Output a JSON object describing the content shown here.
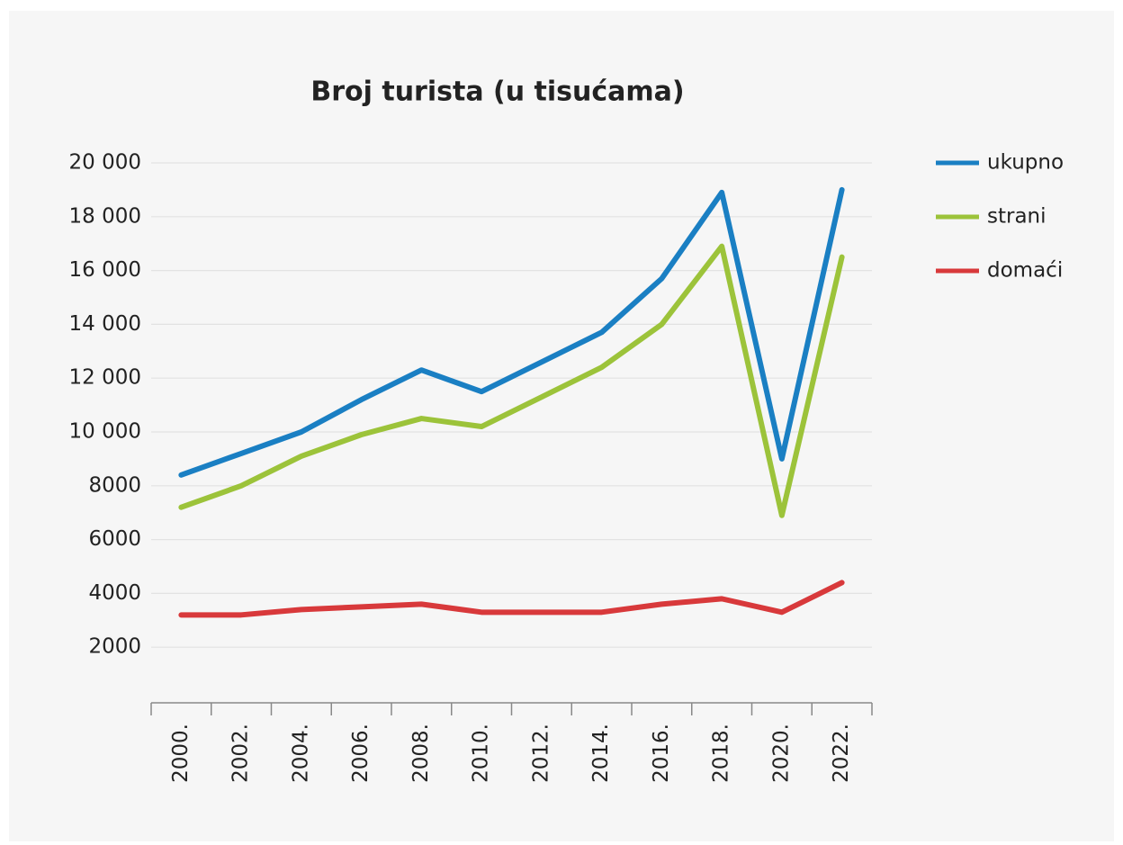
{
  "chart_data": {
    "type": "line",
    "title": "Broj turista (u tisućama)",
    "categories": [
      "2000.",
      "2002.",
      "2004.",
      "2006.",
      "2008.",
      "2010.",
      "2012.",
      "2014.",
      "2016.",
      "2018.",
      "2020.",
      "2022."
    ],
    "series": [
      {
        "name": "ukupno",
        "color": "#1a7fc3",
        "values": [
          8400,
          9200,
          10000,
          11200,
          12300,
          11500,
          12600,
          13700,
          15700,
          18900,
          9000,
          19000
        ]
      },
      {
        "name": "strani",
        "color": "#9cc33a",
        "values": [
          7200,
          8000,
          9100,
          9900,
          10500,
          10200,
          11300,
          12400,
          14000,
          16900,
          6900,
          16500
        ]
      },
      {
        "name": "domaći",
        "color": "#d8393b",
        "values": [
          3200,
          3200,
          3400,
          3500,
          3600,
          3300,
          3300,
          3300,
          3600,
          3800,
          3300,
          4400
        ]
      }
    ],
    "ylim": [
      0,
      20000
    ],
    "yticks": [
      2000,
      4000,
      6000,
      8000,
      {
        "value": 10000,
        "label": "10 000"
      },
      {
        "value": 12000,
        "label": "12 000"
      },
      {
        "value": 14000,
        "label": "14 000"
      },
      {
        "value": 16000,
        "label": "16 000"
      },
      {
        "value": 18000,
        "label": "18 000"
      },
      {
        "value": 20000,
        "label": "20 000"
      }
    ],
    "grid": true,
    "legend": "right"
  }
}
